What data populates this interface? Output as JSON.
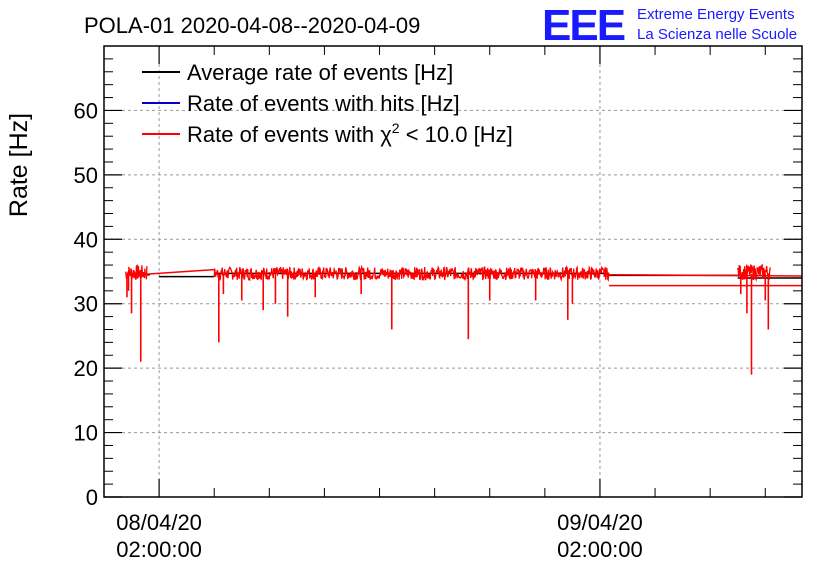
{
  "header": {
    "title": "POLA-01 2020-04-08--2020-04-09",
    "logo_text": "EEE",
    "logo_line1": "Extreme Energy Events",
    "logo_line2": "La Scienza nelle Scuole"
  },
  "colors": {
    "average": "#000000",
    "hits": "#0000cc",
    "chi2": "#ff0000",
    "logo": "#1a1aff",
    "grid": "#999999"
  },
  "chart_data": {
    "type": "line",
    "ylabel": "Rate [Hz]",
    "xlabel": "",
    "ylim": [
      0,
      70
    ],
    "yticks": [
      0,
      10,
      20,
      30,
      40,
      50,
      60
    ],
    "xlim": [
      "2020-04-07 23:00",
      "2020-04-09 13:00"
    ],
    "xticks": [
      {
        "date": "08/04/20",
        "time": "02:00:00",
        "at": "2020-04-08 02:00"
      },
      {
        "date": "09/04/20",
        "time": "02:00:00",
        "at": "2020-04-09 02:00"
      }
    ],
    "grid": true,
    "legend_position": "top-left",
    "legend": [
      {
        "label": "Average rate of events [Hz]",
        "color": "#000000"
      },
      {
        "label": "Rate of events with hits [Hz]",
        "color": "#0000cc"
      },
      {
        "label_prefix": "Rate of events with ",
        "label_symbol": "χ",
        "label_sup": "2",
        "label_suffix": " < 10.0 [Hz]",
        "color": "#ff0000"
      }
    ],
    "series": [
      {
        "name": "Average rate of events [Hz]",
        "color": "#000000",
        "segments": [
          {
            "start": "2020-04-08 00:10",
            "end": "2020-04-08 01:30",
            "level": 34.5
          },
          {
            "start": "2020-04-08 02:00",
            "end": "2020-04-08 05:00",
            "level": 34.2
          },
          {
            "start": "2020-04-08 05:00",
            "end": "2020-04-09 02:30",
            "level": 34.7
          },
          {
            "start": "2020-04-09 02:30",
            "end": "2020-04-09 09:30",
            "level": 34.4
          },
          {
            "start": "2020-04-09 09:30",
            "end": "2020-04-09 13:00",
            "level": 34.0
          }
        ]
      },
      {
        "name": "Rate of events with hits [Hz]",
        "color": "#0000cc",
        "segments": []
      },
      {
        "name": "Rate of events with χ2 < 10.0 [Hz]",
        "color": "#ff0000",
        "noisy_segments": [
          {
            "start": "2020-04-08 00:10",
            "end": "2020-04-08 01:20",
            "level": 34.8,
            "amplitude": 1.2
          },
          {
            "start": "2020-04-08 05:00",
            "end": "2020-04-09 02:30",
            "level": 34.7,
            "amplitude": 1.0
          },
          {
            "start": "2020-04-09 09:30",
            "end": "2020-04-09 11:15",
            "level": 34.9,
            "amplitude": 1.2
          }
        ],
        "connectors": [
          {
            "start": "2020-04-08 01:20",
            "end": "2020-04-08 05:00",
            "from": 34.6,
            "to": 35.3
          },
          {
            "start": "2020-04-09 02:30",
            "end": "2020-04-09 13:00",
            "from": 34.5,
            "to": 34.3
          },
          {
            "start": "2020-04-09 02:30",
            "end": "2020-04-09 13:00",
            "from": 32.8,
            "to": 32.8
          }
        ],
        "dips": [
          {
            "t": "2020-04-08 00:15",
            "value": 31.0
          },
          {
            "t": "2020-04-08 00:20",
            "value": 32.0
          },
          {
            "t": "2020-04-08 00:30",
            "value": 28.5
          },
          {
            "t": "2020-04-08 01:00",
            "value": 21.0
          },
          {
            "t": "2020-04-08 05:15",
            "value": 24.0
          },
          {
            "t": "2020-04-08 05:30",
            "value": 31.5
          },
          {
            "t": "2020-04-08 06:30",
            "value": 30.5
          },
          {
            "t": "2020-04-08 07:40",
            "value": 29.0
          },
          {
            "t": "2020-04-08 08:20",
            "value": 30.0
          },
          {
            "t": "2020-04-08 09:00",
            "value": 28.0
          },
          {
            "t": "2020-04-08 10:30",
            "value": 31.0
          },
          {
            "t": "2020-04-08 13:00",
            "value": 31.5
          },
          {
            "t": "2020-04-08 14:40",
            "value": 26.0
          },
          {
            "t": "2020-04-08 18:50",
            "value": 24.5
          },
          {
            "t": "2020-04-08 20:00",
            "value": 30.5
          },
          {
            "t": "2020-04-08 22:30",
            "value": 30.5
          },
          {
            "t": "2020-04-09 00:15",
            "value": 27.5
          },
          {
            "t": "2020-04-09 00:30",
            "value": 30.0
          },
          {
            "t": "2020-04-09 09:40",
            "value": 31.5
          },
          {
            "t": "2020-04-09 10:00",
            "value": 28.5
          },
          {
            "t": "2020-04-09 10:15",
            "value": 19.0
          },
          {
            "t": "2020-04-09 11:00",
            "value": 30.5
          },
          {
            "t": "2020-04-09 11:10",
            "value": 26.0
          }
        ]
      }
    ]
  }
}
